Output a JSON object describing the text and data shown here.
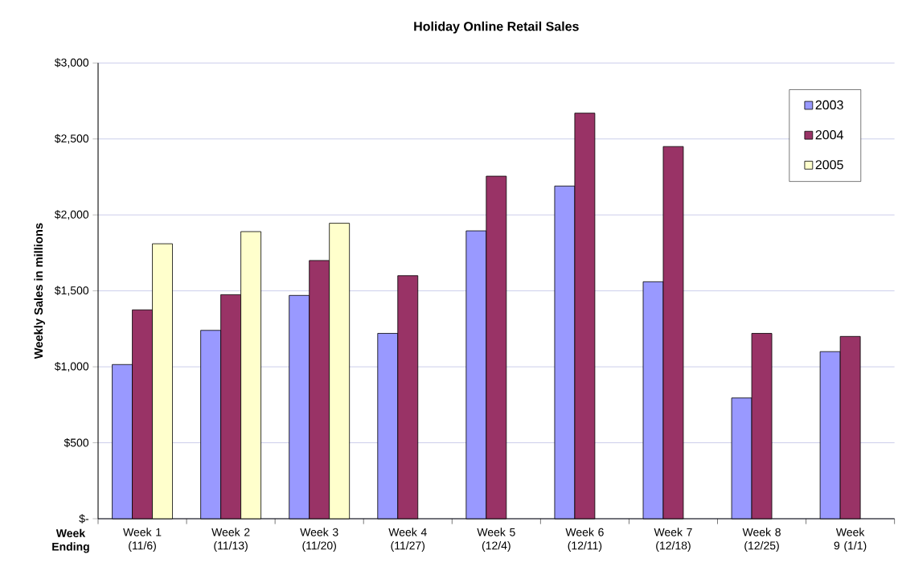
{
  "chart_data": {
    "type": "bar",
    "title": "Holiday Online Retail Sales",
    "xlabel": "Week Ending",
    "ylabel": "Weekly Sales in millions",
    "categories": [
      "Week 1 (11/6)",
      "Week 2 (11/13)",
      "Week 3 (11/20)",
      "Week 4 (11/27)",
      "Week 5 (12/4)",
      "Week 6 (12/11)",
      "Week 7 (12/18)",
      "Week 8 (12/25)",
      "Week 9 (1/1)"
    ],
    "series": [
      {
        "name": "2003",
        "color": "#9999ff",
        "values": [
          1015,
          1240,
          1470,
          1220,
          1895,
          2190,
          1560,
          795,
          1100
        ]
      },
      {
        "name": "2004",
        "color": "#993366",
        "values": [
          1375,
          1475,
          1700,
          1600,
          2255,
          2670,
          2450,
          1220,
          1200
        ]
      },
      {
        "name": "2005",
        "color": "#ffffcc",
        "values": [
          1810,
          1890,
          1945,
          null,
          null,
          null,
          null,
          null,
          null
        ]
      }
    ],
    "ylim": [
      0,
      3000
    ],
    "yticks": [
      {
        "value": 0,
        "label": "$-"
      },
      {
        "value": 500,
        "label": "$500"
      },
      {
        "value": 1000,
        "label": "$1,000"
      },
      {
        "value": 1500,
        "label": "$1,500"
      },
      {
        "value": 2000,
        "label": "$2,000"
      },
      {
        "value": 2500,
        "label": "$2,500"
      },
      {
        "value": 3000,
        "label": "$3,000"
      }
    ],
    "grid": "y",
    "legend": "top right"
  }
}
